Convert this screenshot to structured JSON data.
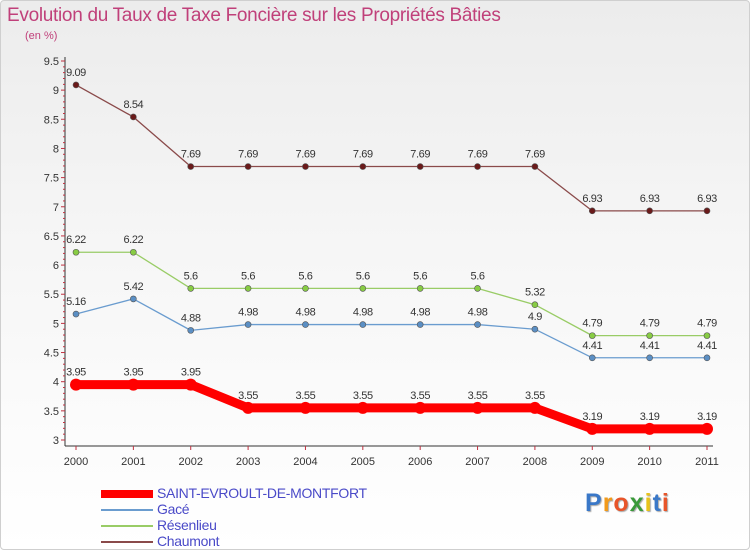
{
  "title": "Evolution du Taux de Taxe Foncière sur les Propriétés Bâties",
  "subtitle": "(en %)",
  "logo": {
    "letters": [
      "P",
      "r",
      "o",
      "x",
      "i",
      "t",
      "i"
    ],
    "colors": [
      "#3a78c8",
      "#f29a1a",
      "#e8552a",
      "#3a9a3a",
      "#e8c21a",
      "#3a78c8",
      "#e8552a"
    ]
  },
  "chart_data": {
    "type": "line",
    "title": "Evolution du Taux de Taxe Foncière sur les Propriétés Bâties",
    "subtitle": "(en %)",
    "xlabel": "",
    "ylabel": "",
    "x": [
      "2000",
      "2001",
      "2002",
      "2003",
      "2004",
      "2005",
      "2006",
      "2007",
      "2008",
      "2009",
      "2010",
      "2011"
    ],
    "ylim": [
      3,
      9.5
    ],
    "yticks": [
      "3",
      "3.5",
      "4",
      "4.5",
      "5",
      "5.5",
      "6",
      "6.5",
      "7",
      "7.5",
      "8",
      "8.5",
      "9",
      "9.5"
    ],
    "grid": false,
    "legend_position": "bottom-left",
    "series": [
      {
        "name": "SAINT-EVROULT-DE-MONTFORT",
        "color": "#ff0000",
        "marker_color": "#ff0000",
        "values": [
          3.95,
          3.95,
          3.95,
          3.55,
          3.55,
          3.55,
          3.55,
          3.55,
          3.55,
          3.19,
          3.19,
          3.19
        ],
        "labels": [
          "3.95",
          "3.95",
          "3.95",
          "3.55",
          "3.55",
          "3.55",
          "3.55",
          "3.55",
          "3.55",
          "3.19",
          "3.19",
          "3.19"
        ]
      },
      {
        "name": "Gacé",
        "color": "#6a9ccf",
        "marker_color": "#5b8fc4",
        "values": [
          5.16,
          5.42,
          4.88,
          4.98,
          4.98,
          4.98,
          4.98,
          4.98,
          4.9,
          4.41,
          4.41,
          4.41
        ],
        "labels": [
          "5.16",
          "5.42",
          "4.88",
          "4.98",
          "4.98",
          "4.98",
          "4.98",
          "4.98",
          "4.9",
          "4.41",
          "4.41",
          "4.41"
        ]
      },
      {
        "name": "Résenlieu",
        "color": "#99cc66",
        "marker_color": "#88cc44",
        "values": [
          6.22,
          6.22,
          5.6,
          5.6,
          5.6,
          5.6,
          5.6,
          5.6,
          5.32,
          4.79,
          4.79,
          4.79
        ],
        "labels": [
          "6.22",
          "6.22",
          "5.6",
          "5.6",
          "5.6",
          "5.6",
          "5.6",
          "5.6",
          "5.32",
          "4.79",
          "4.79",
          "4.79"
        ]
      },
      {
        "name": "Chaumont",
        "color": "#8a4a4a",
        "marker_color": "#6a1a1a",
        "values": [
          9.09,
          8.54,
          7.69,
          7.69,
          7.69,
          7.69,
          7.69,
          7.69,
          7.69,
          6.93,
          6.93,
          6.93
        ],
        "labels": [
          "9.09",
          "8.54",
          "7.69",
          "7.69",
          "7.69",
          "7.69",
          "7.69",
          "7.69",
          "7.69",
          "6.93",
          "6.93",
          "6.93"
        ]
      }
    ]
  }
}
